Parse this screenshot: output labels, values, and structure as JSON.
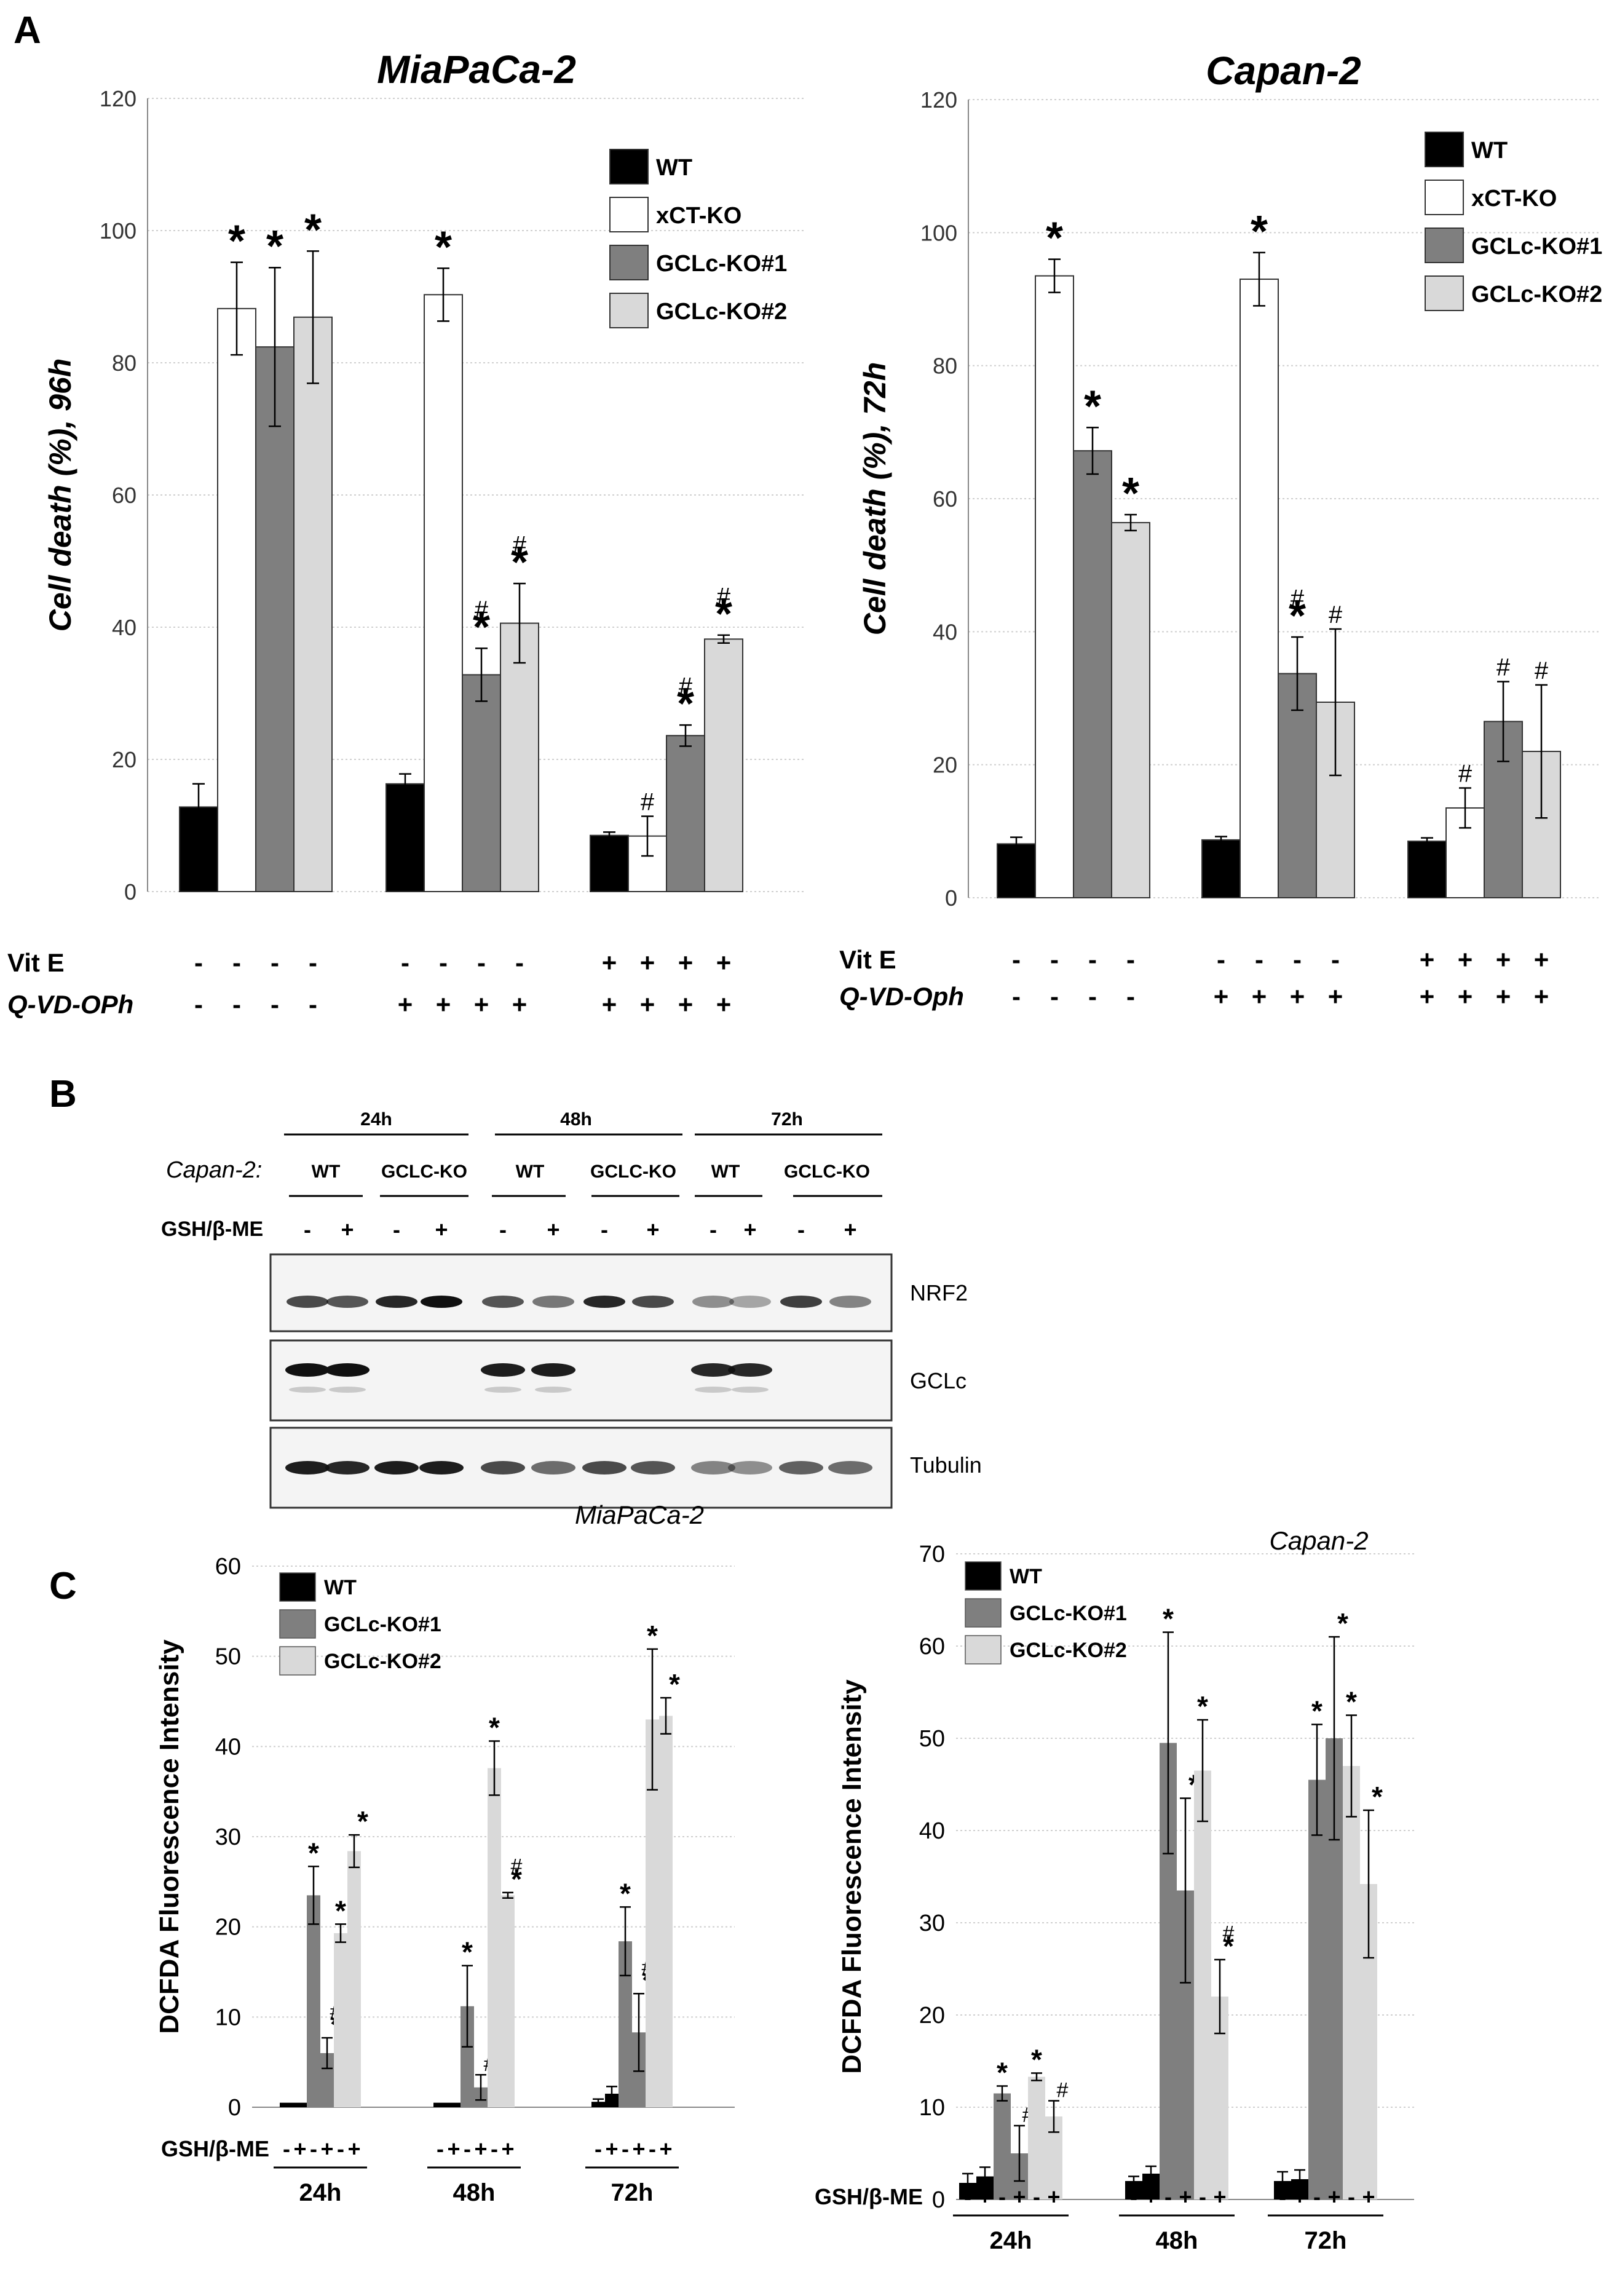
{
  "panel_labels": {
    "a": "A",
    "b": "B",
    "c": "C"
  },
  "panel_a": {
    "row_labels": {
      "vite": "Vit E",
      "qvd_left": "Q-VD-OPh",
      "qvd_right": "Q-VD-Oph"
    },
    "legend": [
      {
        "name": "WT",
        "color": "#000000"
      },
      {
        "name": "xCT-KO",
        "color": "#ffffff"
      },
      {
        "name": "GCLc-KO#1",
        "color": "#7f7f7f"
      },
      {
        "name": "GCLc-KO#2",
        "color": "#d9d9d9"
      }
    ],
    "conditions": [
      {
        "vite": [
          "-",
          "-",
          "-",
          "-"
        ],
        "qvd": [
          "-",
          "-",
          "-",
          "-"
        ]
      },
      {
        "vite": [
          "-",
          "-",
          "-",
          "-"
        ],
        "qvd": [
          "+",
          "+",
          "+",
          "+"
        ]
      },
      {
        "vite": [
          "+",
          "+",
          "+",
          "+"
        ],
        "qvd": [
          "+",
          "+",
          "+",
          "+"
        ]
      }
    ]
  },
  "panel_b": {
    "cell_line": "Capan-2:",
    "treatment": "GSH/β-ME",
    "timepoints": [
      "24h",
      "48h",
      "72h"
    ],
    "genotypes": [
      "WT",
      "GCLC-KO"
    ],
    "treatment_signs": [
      "-",
      "+"
    ],
    "blots": [
      "NRF2",
      "GCLc",
      "Tubulin"
    ]
  },
  "panel_c": {
    "legend": [
      {
        "name": "WT",
        "color": "#000000"
      },
      {
        "name": "GCLc-KO#1",
        "color": "#7f7f7f"
      },
      {
        "name": "GCLc-KO#2",
        "color": "#d9d9d9"
      }
    ],
    "treatment": "GSH/β-ME",
    "timepoints": [
      "24h",
      "48h",
      "72h"
    ],
    "signs": [
      "-",
      "+",
      "-",
      "+",
      "-",
      "+"
    ]
  },
  "chart_data": [
    {
      "type": "bar",
      "title": "MiaPaCa-2",
      "ylabel": "Cell death (%), 96h",
      "ylim": [
        0,
        120
      ],
      "yticks": [
        "0",
        "20",
        "40",
        "60",
        "80",
        "100",
        "120"
      ],
      "legend_position": "top-right",
      "series": [
        {
          "name": "WT",
          "values": [
            12.8,
            16.3,
            8.5
          ],
          "errors": [
            3.5,
            1.5,
            0.5
          ],
          "marks": [
            "",
            "",
            ""
          ]
        },
        {
          "name": "xCT-KO",
          "values": [
            88.2,
            90.3,
            8.4
          ],
          "errors": [
            7.0,
            4.0,
            3.0
          ],
          "marks": [
            "*",
            "*",
            "#"
          ]
        },
        {
          "name": "GCLc-KO#1",
          "values": [
            82.4,
            32.8,
            23.6
          ],
          "errors": [
            12.0,
            4.0,
            1.6
          ],
          "marks": [
            "*",
            "*\n#",
            "*\n#"
          ]
        },
        {
          "name": "GCLc-KO#2",
          "values": [
            86.9,
            40.6,
            38.2
          ],
          "errors": [
            10.0,
            6.0,
            0.6
          ],
          "marks": [
            "*",
            "*\n#",
            "*\n#"
          ]
        }
      ]
    },
    {
      "type": "bar",
      "title": "Capan-2",
      "ylabel": "Cell death (%), 72h",
      "ylim": [
        0,
        120
      ],
      "yticks": [
        "0",
        "20",
        "40",
        "60",
        "80",
        "100",
        "120"
      ],
      "legend_position": "top-right",
      "series": [
        {
          "name": "WT",
          "values": [
            8.1,
            8.7,
            8.5
          ],
          "errors": [
            1.0,
            0.5,
            0.5
          ],
          "marks": [
            "",
            "",
            ""
          ]
        },
        {
          "name": "xCT-KO",
          "values": [
            93.5,
            93.0,
            13.5
          ],
          "errors": [
            2.5,
            4.0,
            3.0
          ],
          "marks": [
            "*",
            "*",
            "#"
          ]
        },
        {
          "name": "GCLc-KO#1",
          "values": [
            67.2,
            33.7,
            26.5
          ],
          "errors": [
            3.5,
            5.5,
            6.0
          ],
          "marks": [
            "*",
            "*\n#",
            "#"
          ]
        },
        {
          "name": "GCLc-KO#2",
          "values": [
            56.4,
            29.4,
            22.0
          ],
          "errors": [
            1.2,
            11.0,
            10.0
          ],
          "marks": [
            "*",
            "#",
            "#"
          ]
        }
      ]
    },
    {
      "type": "bar",
      "title": "MiaPaCa-2",
      "ylabel": "DCFDA Fluorescence Intensity",
      "ylim": [
        0,
        60
      ],
      "yticks": [
        "0",
        "10",
        "20",
        "30",
        "40",
        "50",
        "60"
      ],
      "legend_position": "top-left",
      "series": [
        {
          "name": "WT (-)",
          "values": [
            0.5,
            0.5,
            0.6
          ],
          "errors": [
            0,
            0,
            0.3
          ],
          "marks": [
            "",
            "",
            ""
          ]
        },
        {
          "name": "WT (+)",
          "values": [
            0.5,
            0.5,
            1.5
          ],
          "errors": [
            0,
            0,
            0.8
          ],
          "marks": [
            "",
            "",
            ""
          ]
        },
        {
          "name": "GCLc-KO#1 (-)",
          "values": [
            23.5,
            11.2,
            18.4
          ],
          "errors": [
            3.2,
            4.5,
            3.8
          ],
          "marks": [
            "*",
            "*",
            "*"
          ]
        },
        {
          "name": "GCLc-KO#1 (+)",
          "values": [
            6.0,
            2.2,
            8.3
          ],
          "errors": [
            1.7,
            1.4,
            4.3
          ],
          "marks": [
            "*\n#",
            "#",
            "*\n#"
          ]
        },
        {
          "name": "GCLc-KO#2 (-)",
          "values": [
            19.3,
            37.6,
            43.0
          ],
          "errors": [
            1.0,
            3.0,
            7.8
          ],
          "marks": [
            "*",
            "*",
            "*"
          ]
        },
        {
          "name": "GCLc-KO#2 (+)",
          "values": [
            28.4,
            23.5,
            43.4
          ],
          "errors": [
            1.8,
            0.3,
            2.0
          ],
          "marks": [
            "*",
            "*\n#",
            "*"
          ]
        }
      ]
    },
    {
      "type": "bar",
      "title": "Capan-2",
      "ylabel": "DCFDA Fluorescence Intensity",
      "ylim": [
        0,
        70
      ],
      "yticks": [
        "0",
        "10",
        "20",
        "30",
        "40",
        "50",
        "60",
        "70"
      ],
      "legend_position": "top-left",
      "series": [
        {
          "name": "WT (-)",
          "values": [
            1.8,
            2.0,
            2.0
          ],
          "errors": [
            1.0,
            0.5,
            1.0
          ],
          "marks": [
            "",
            "",
            ""
          ]
        },
        {
          "name": "WT (+)",
          "values": [
            2.5,
            2.8,
            2.2
          ],
          "errors": [
            1.0,
            0.8,
            1.0
          ],
          "marks": [
            "",
            "",
            ""
          ]
        },
        {
          "name": "GCLc-KO#1 (-)",
          "values": [
            11.5,
            49.5,
            45.5
          ],
          "errors": [
            0.8,
            12.0,
            6.0
          ],
          "marks": [
            "*",
            "*",
            "*"
          ]
        },
        {
          "name": "GCLc-KO#1 (+)",
          "values": [
            5.0,
            33.5,
            50.0
          ],
          "errors": [
            3.0,
            10.0,
            11.0
          ],
          "marks": [
            "#",
            "*",
            "*"
          ]
        },
        {
          "name": "GCLc-KO#2 (-)",
          "values": [
            13.3,
            46.5,
            47.0
          ],
          "errors": [
            0.4,
            5.5,
            5.5
          ],
          "marks": [
            "*",
            "*",
            "*"
          ]
        },
        {
          "name": "GCLc-KO#2 (+)",
          "values": [
            9.0,
            22.0,
            34.2
          ],
          "errors": [
            1.7,
            4.0,
            8.0
          ],
          "marks": [
            "#",
            "*\n#",
            "*"
          ]
        }
      ]
    }
  ]
}
